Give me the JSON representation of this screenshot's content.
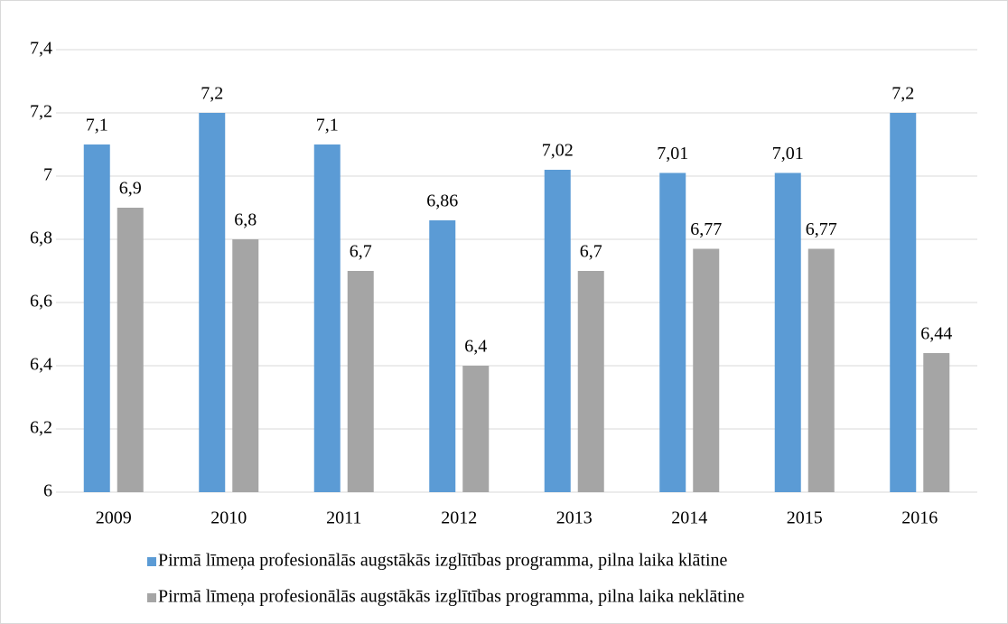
{
  "chart_data": {
    "type": "bar",
    "categories": [
      "2009",
      "2010",
      "2011",
      "2012",
      "2013",
      "2014",
      "2015",
      "2016"
    ],
    "series": [
      {
        "name": "Pirmā līmeņa profesionālās augstākās izglītības programma, pilna laika klātine",
        "color": "#5b9bd5",
        "values": [
          7.1,
          7.2,
          7.1,
          6.86,
          7.02,
          7.01,
          7.01,
          7.2
        ],
        "value_labels": [
          "7,1",
          "7,2",
          "7,1",
          "6,86",
          "7,02",
          "7,01",
          "7,01",
          "7,2"
        ]
      },
      {
        "name": "Pirmā līmeņa profesionālās augstākās izglītības programma, pilna laika neklātine",
        "color": "#a5a5a5",
        "values": [
          6.9,
          6.8,
          6.7,
          6.4,
          6.7,
          6.77,
          6.77,
          6.44
        ],
        "value_labels": [
          "6,9",
          "6,8",
          "6,7",
          "6,4",
          "6,7",
          "6,77",
          "6,77",
          "6,44"
        ]
      }
    ],
    "ylim": [
      6,
      7.4
    ],
    "yticks": [
      6,
      {
        "value": 6.2,
        "label": "6,2"
      },
      {
        "value": 6.4,
        "label": "6,4"
      },
      {
        "value": 6.6,
        "label": "6,6"
      },
      {
        "value": 6.8,
        "label": "6,8"
      },
      7,
      {
        "value": 7.2,
        "label": "7,2"
      },
      {
        "value": 7.4,
        "label": "7,4"
      }
    ],
    "grid": true,
    "legend": "bottom"
  }
}
